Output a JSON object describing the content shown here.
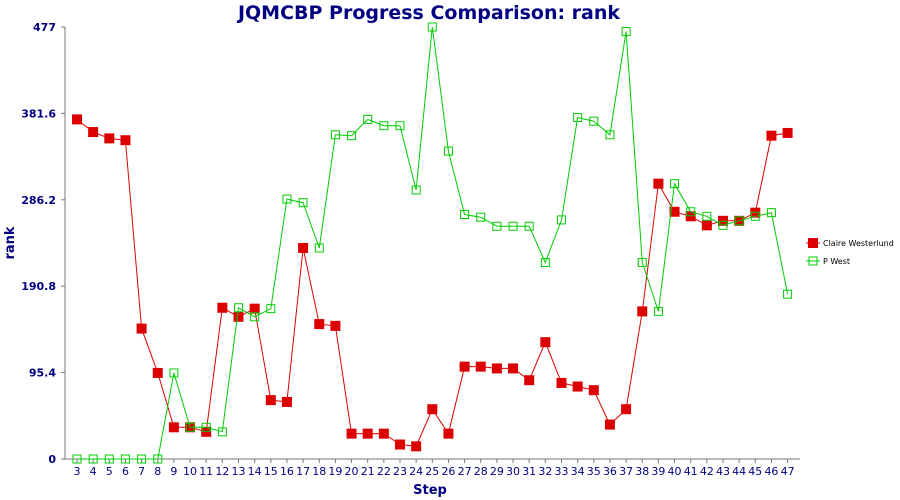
{
  "chart_data": {
    "type": "line",
    "title": "JQMCBP Progress Comparison: rank",
    "xlabel": "Step",
    "ylabel": "rank",
    "ylim": [
      0,
      477
    ],
    "yticks": [
      "0",
      "95.4",
      "190.8",
      "286.2",
      "381.6",
      "477"
    ],
    "yticks_values": [
      0,
      95.4,
      190.8,
      286.2,
      381.6,
      477
    ],
    "x": [
      3,
      4,
      5,
      6,
      7,
      8,
      9,
      10,
      11,
      12,
      13,
      14,
      15,
      16,
      17,
      18,
      19,
      20,
      21,
      22,
      23,
      24,
      25,
      26,
      27,
      28,
      29,
      30,
      31,
      32,
      33,
      34,
      35,
      36,
      37,
      38,
      39,
      40,
      41,
      42,
      43,
      44,
      45,
      46,
      47
    ],
    "grid": false,
    "legend_position": "right",
    "series": [
      {
        "name": "Claire Westerlund",
        "color": "#dd0000",
        "marker": "filled-square",
        "values": [
          375,
          361,
          354,
          352,
          144,
          95,
          35,
          35,
          30,
          167,
          157,
          166,
          65,
          63,
          233,
          149,
          147,
          28,
          28,
          28,
          16,
          14,
          55,
          28,
          102,
          102,
          100,
          100,
          87,
          129,
          84,
          80,
          76,
          38,
          55,
          163,
          304,
          273,
          268,
          258,
          263,
          263,
          272,
          357,
          360
        ]
      },
      {
        "name": "P West",
        "color": "#00cc00",
        "marker": "hollow-square",
        "values": [
          0,
          0,
          0,
          0,
          0,
          0,
          95,
          35,
          35,
          30,
          167,
          157,
          166,
          287,
          283,
          233,
          358,
          357,
          375,
          368,
          368,
          297,
          477,
          340,
          270,
          267,
          257,
          257,
          257,
          217,
          264,
          377,
          373,
          358,
          472,
          217,
          163,
          304,
          273,
          268,
          258,
          263,
          268,
          272,
          182
        ]
      }
    ]
  }
}
